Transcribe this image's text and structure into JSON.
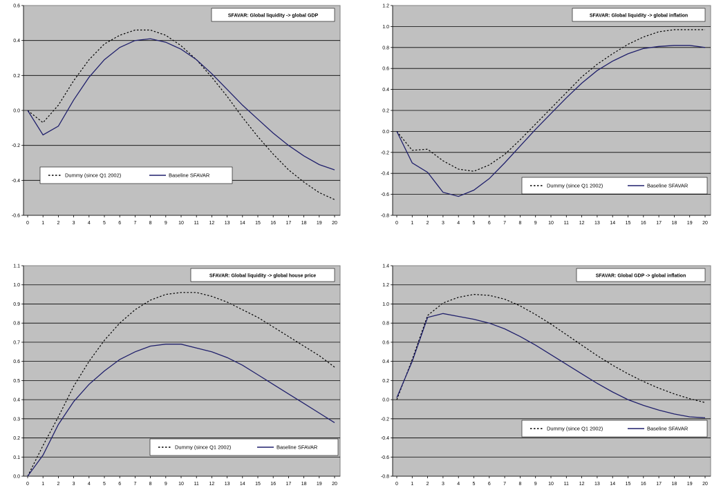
{
  "colors": {
    "plot_bg": "#C0C0C0",
    "gridline": "#000000",
    "series_line": "#1F1F6B",
    "box_bg": "#FFFFFF"
  },
  "chart_data": [
    {
      "type": "line",
      "title": "SFAVAR: Global liquidity -> global GDP",
      "x": [
        0,
        1,
        2,
        3,
        4,
        5,
        6,
        7,
        8,
        9,
        10,
        11,
        12,
        13,
        14,
        15,
        16,
        17,
        18,
        19,
        20
      ],
      "ylim": [
        -0.6,
        0.6
      ],
      "yticks": [
        -0.6,
        -0.4,
        -0.2,
        0.0,
        0.2,
        0.4,
        0.6
      ],
      "ytick_labels": [
        "-0.6",
        "-0.4",
        "-0.2",
        "0.0",
        "0.2",
        "0.4",
        "0.6"
      ],
      "grid": true,
      "legend_position": "bottom-left",
      "series": [
        {
          "name": "Dummy (since Q1 2002)",
          "style": "dashed",
          "values": [
            0.0,
            -0.07,
            0.03,
            0.17,
            0.29,
            0.38,
            0.43,
            0.46,
            0.46,
            0.43,
            0.37,
            0.29,
            0.19,
            0.08,
            -0.04,
            -0.15,
            -0.25,
            -0.34,
            -0.41,
            -0.47,
            -0.51
          ]
        },
        {
          "name": "Baseline SFAVAR",
          "style": "solid",
          "values": [
            0.0,
            -0.14,
            -0.09,
            0.06,
            0.19,
            0.29,
            0.36,
            0.4,
            0.41,
            0.39,
            0.35,
            0.29,
            0.21,
            0.12,
            0.03,
            -0.05,
            -0.13,
            -0.2,
            -0.26,
            -0.31,
            -0.34
          ]
        }
      ]
    },
    {
      "type": "line",
      "title": "SFAVAR: Global liquidity -> global inflation",
      "x": [
        0,
        1,
        2,
        3,
        4,
        5,
        6,
        7,
        8,
        9,
        10,
        11,
        12,
        13,
        14,
        15,
        16,
        17,
        18,
        19,
        20
      ],
      "ylim": [
        -0.8,
        1.2
      ],
      "yticks": [
        -0.8,
        -0.6,
        -0.4,
        -0.2,
        0.0,
        0.2,
        0.4,
        0.6,
        0.8,
        1.0,
        1.2
      ],
      "ytick_labels": [
        "-0.8",
        "-0.6",
        "-0.4",
        "-0.2",
        "0.0",
        "0.2",
        "0.4",
        "0.6",
        "0.8",
        "1.0",
        "1.2"
      ],
      "grid": true,
      "legend_position": "bottom-right",
      "series": [
        {
          "name": "Dummy (since Q1 2002)",
          "style": "dashed",
          "values": [
            0.0,
            -0.18,
            -0.17,
            -0.28,
            -0.36,
            -0.38,
            -0.32,
            -0.22,
            -0.08,
            0.07,
            0.22,
            0.37,
            0.52,
            0.64,
            0.74,
            0.83,
            0.9,
            0.95,
            0.97,
            0.97,
            0.97
          ]
        },
        {
          "name": "Baseline SFAVAR",
          "style": "solid",
          "values": [
            0.0,
            -0.3,
            -0.39,
            -0.58,
            -0.62,
            -0.56,
            -0.45,
            -0.3,
            -0.14,
            0.02,
            0.17,
            0.32,
            0.46,
            0.58,
            0.67,
            0.74,
            0.79,
            0.81,
            0.82,
            0.82,
            0.8
          ]
        }
      ]
    },
    {
      "type": "line",
      "title": "SFAVAR: Global liquidity -> global house price",
      "x": [
        0,
        1,
        2,
        3,
        4,
        5,
        6,
        7,
        8,
        9,
        10,
        11,
        12,
        13,
        14,
        15,
        16,
        17,
        18,
        19,
        20
      ],
      "ylim": [
        0.0,
        1.1
      ],
      "yticks": [
        0.0,
        0.1,
        0.2,
        0.3,
        0.4,
        0.5,
        0.6,
        0.7,
        0.8,
        0.9,
        1.0,
        1.1
      ],
      "ytick_labels": [
        "0.0",
        "0.1",
        "0.2",
        "0.3",
        "0.4",
        "0.5",
        "0.6",
        "0.7",
        "0.8",
        "0.9",
        "1.0",
        "1.1"
      ],
      "grid": true,
      "legend_position": "bottom-right",
      "series": [
        {
          "name": "Dummy (since Q1 2002)",
          "style": "dashed",
          "values": [
            0.0,
            0.16,
            0.31,
            0.47,
            0.6,
            0.71,
            0.8,
            0.87,
            0.92,
            0.95,
            0.96,
            0.96,
            0.94,
            0.91,
            0.87,
            0.83,
            0.78,
            0.73,
            0.68,
            0.63,
            0.57
          ]
        },
        {
          "name": "Baseline SFAVAR",
          "style": "solid",
          "values": [
            0.0,
            0.11,
            0.27,
            0.39,
            0.48,
            0.55,
            0.61,
            0.65,
            0.68,
            0.69,
            0.69,
            0.67,
            0.65,
            0.62,
            0.58,
            0.53,
            0.48,
            0.43,
            0.38,
            0.33,
            0.28
          ]
        }
      ]
    },
    {
      "type": "line",
      "title": "SFAVAR: Global GDP -> global inflation",
      "x": [
        0,
        1,
        2,
        3,
        4,
        5,
        6,
        7,
        8,
        9,
        10,
        11,
        12,
        13,
        14,
        15,
        16,
        17,
        18,
        19,
        20
      ],
      "ylim": [
        -0.8,
        1.4
      ],
      "yticks": [
        -0.8,
        -0.6,
        -0.4,
        -0.2,
        0.0,
        0.2,
        0.4,
        0.6,
        0.8,
        1.0,
        1.2,
        1.4
      ],
      "ytick_labels": [
        "-0.8",
        "-0.6",
        "-0.4",
        "-0.2",
        "0.0",
        "0.2",
        "0.4",
        "0.6",
        "0.8",
        "1.0",
        "1.2",
        "1.4"
      ],
      "grid": true,
      "legend_position": "bottom-right",
      "series": [
        {
          "name": "Dummy (since Q1 2002)",
          "style": "dashed",
          "values": [
            0.0,
            0.42,
            0.88,
            1.01,
            1.07,
            1.1,
            1.09,
            1.05,
            0.98,
            0.89,
            0.79,
            0.68,
            0.57,
            0.46,
            0.36,
            0.27,
            0.19,
            0.12,
            0.06,
            0.01,
            -0.03
          ]
        },
        {
          "name": "Baseline SFAVAR",
          "style": "solid",
          "values": [
            0.02,
            0.4,
            0.86,
            0.9,
            0.87,
            0.84,
            0.8,
            0.74,
            0.66,
            0.57,
            0.47,
            0.37,
            0.27,
            0.17,
            0.08,
            0.0,
            -0.06,
            -0.11,
            -0.15,
            -0.18,
            -0.19
          ]
        }
      ]
    }
  ]
}
